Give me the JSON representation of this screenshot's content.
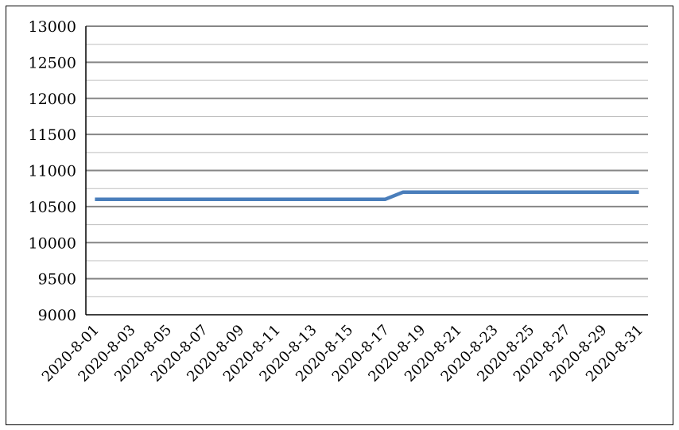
{
  "chart_data": {
    "type": "line",
    "title": "",
    "xlabel": "",
    "ylabel": "",
    "ylim": [
      9000,
      13000
    ],
    "yticks": [
      9000,
      9500,
      10000,
      10500,
      11000,
      11500,
      12000,
      12500,
      13000
    ],
    "minor_grid_step": 250,
    "grid": true,
    "legend": "none",
    "x": [
      "2020-8-01",
      "2020-8-02",
      "2020-8-03",
      "2020-8-04",
      "2020-8-05",
      "2020-8-06",
      "2020-8-07",
      "2020-8-08",
      "2020-8-09",
      "2020-8-10",
      "2020-8-11",
      "2020-8-12",
      "2020-8-13",
      "2020-8-14",
      "2020-8-15",
      "2020-8-16",
      "2020-8-17",
      "2020-8-18",
      "2020-8-19",
      "2020-8-20",
      "2020-8-21",
      "2020-8-22",
      "2020-8-23",
      "2020-8-24",
      "2020-8-25",
      "2020-8-26",
      "2020-8-27",
      "2020-8-28",
      "2020-8-29",
      "2020-8-30",
      "2020-8-31"
    ],
    "xtick_labels": [
      "2020-8-01",
      "2020-8-03",
      "2020-8-05",
      "2020-8-07",
      "2020-8-09",
      "2020-8-11",
      "2020-8-13",
      "2020-8-15",
      "2020-8-17",
      "2020-8-19",
      "2020-8-21",
      "2020-8-23",
      "2020-8-25",
      "2020-8-27",
      "2020-8-29",
      "2020-8-31"
    ],
    "series": [
      {
        "values": [
          10600,
          10600,
          10600,
          10600,
          10600,
          10600,
          10600,
          10600,
          10600,
          10600,
          10600,
          10600,
          10600,
          10600,
          10600,
          10600,
          10600,
          10700,
          10700,
          10700,
          10700,
          10700,
          10700,
          10700,
          10700,
          10700,
          10700,
          10700,
          10700,
          10700,
          10700
        ],
        "color": "#4a7ebb"
      }
    ]
  }
}
